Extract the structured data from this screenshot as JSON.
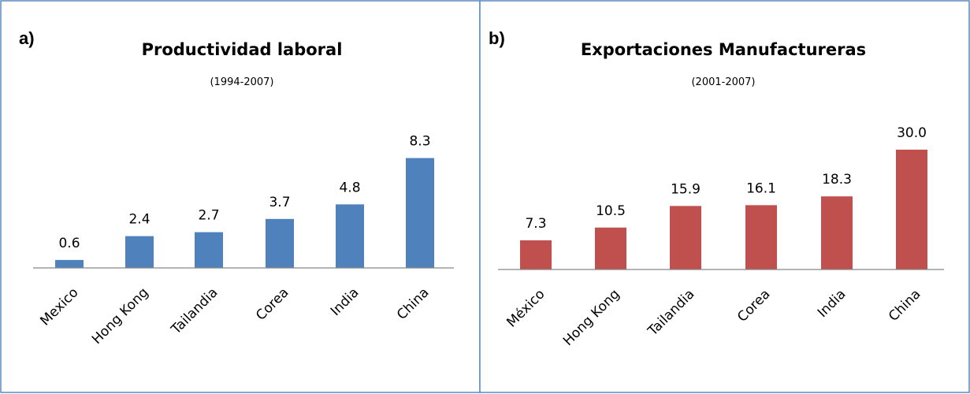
{
  "chart_data": [
    {
      "type": "bar",
      "panel": "a)",
      "title": "Productividad laboral",
      "subtitle": "(1994-2007)",
      "categories": [
        "Mexico",
        "Hong Kong",
        "Tailandia",
        "Corea",
        "India",
        "China"
      ],
      "values": [
        0.6,
        2.4,
        2.7,
        3.7,
        4.8,
        8.3
      ],
      "value_labels": [
        "0.6",
        "2.4",
        "2.7",
        "3.7",
        "4.8",
        "8.3"
      ],
      "bar_color": "#4f81bd",
      "ylim": [
        0,
        10
      ],
      "grid": false,
      "legend": "none"
    },
    {
      "type": "bar",
      "panel": "b)",
      "title": "Exportaciones Manufactureras",
      "subtitle": "(2001-2007)",
      "categories": [
        "México",
        "Hong Kong",
        "Tailandia",
        "Corea",
        "India",
        "China"
      ],
      "values": [
        7.3,
        10.5,
        15.9,
        16.1,
        18.3,
        30.0
      ],
      "value_labels": [
        "7.3",
        "10.5",
        "15.9",
        "16.1",
        "18.3",
        "30.0"
      ],
      "bar_color": "#c0504d",
      "ylim": [
        0,
        36
      ],
      "grid": false,
      "legend": "none"
    }
  ]
}
